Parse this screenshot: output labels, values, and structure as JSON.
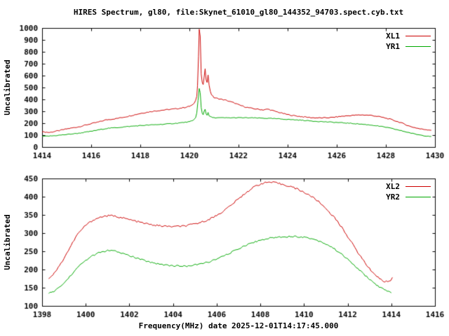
{
  "page": {
    "title": "HIRES Spectrum, gl80, file:Skynet_61010_gl80_144352_94703.spect.cyb.txt",
    "background": "#ffffff",
    "text_color": "#000000"
  },
  "chart_data": [
    {
      "type": "line",
      "name": "top-spectrum",
      "ylabel": "Uncalibrated",
      "xlim": [
        1414,
        1430
      ],
      "ylim": [
        0,
        1000
      ],
      "xticks": [
        1414,
        1416,
        1418,
        1420,
        1422,
        1424,
        1426,
        1428,
        1430
      ],
      "yticks": [
        0,
        100,
        200,
        300,
        400,
        500,
        600,
        700,
        800,
        900,
        1000
      ],
      "grid": false,
      "legend_position": "top-right",
      "series": [
        {
          "name": "XL1",
          "color": "#cc0000",
          "noise": 4,
          "points": [
            [
              1414.0,
              128
            ],
            [
              1414.3,
              122
            ],
            [
              1414.7,
              138
            ],
            [
              1415.0,
              152
            ],
            [
              1415.5,
              170
            ],
            [
              1416.0,
              196
            ],
            [
              1416.3,
              210
            ],
            [
              1416.6,
              228
            ],
            [
              1417.0,
              238
            ],
            [
              1417.5,
              258
            ],
            [
              1418.0,
              282
            ],
            [
              1418.5,
              300
            ],
            [
              1419.0,
              312
            ],
            [
              1419.5,
              322
            ],
            [
              1419.8,
              332
            ],
            [
              1420.0,
              342
            ],
            [
              1420.15,
              355
            ],
            [
              1420.25,
              390
            ],
            [
              1420.3,
              430
            ],
            [
              1420.33,
              520
            ],
            [
              1420.37,
              760
            ],
            [
              1420.4,
              990
            ],
            [
              1420.44,
              930
            ],
            [
              1420.48,
              610
            ],
            [
              1420.52,
              545
            ],
            [
              1420.56,
              520
            ],
            [
              1420.6,
              590
            ],
            [
              1420.64,
              655
            ],
            [
              1420.68,
              560
            ],
            [
              1420.72,
              545
            ],
            [
              1420.76,
              610
            ],
            [
              1420.8,
              520
            ],
            [
              1420.85,
              470
            ],
            [
              1420.9,
              440
            ],
            [
              1421.0,
              415
            ],
            [
              1421.2,
              405
            ],
            [
              1421.5,
              392
            ],
            [
              1421.8,
              372
            ],
            [
              1422.0,
              355
            ],
            [
              1422.3,
              335
            ],
            [
              1422.6,
              322
            ],
            [
              1423.0,
              312
            ],
            [
              1423.2,
              318
            ],
            [
              1423.4,
              305
            ],
            [
              1423.7,
              288
            ],
            [
              1424.0,
              272
            ],
            [
              1424.3,
              262
            ],
            [
              1424.7,
              252
            ],
            [
              1425.0,
              246
            ],
            [
              1425.4,
              244
            ],
            [
              1425.8,
              248
            ],
            [
              1426.2,
              258
            ],
            [
              1426.6,
              265
            ],
            [
              1427.0,
              270
            ],
            [
              1427.4,
              266
            ],
            [
              1427.8,
              252
            ],
            [
              1428.2,
              232
            ],
            [
              1428.6,
              205
            ],
            [
              1429.0,
              172
            ],
            [
              1429.4,
              152
            ],
            [
              1429.7,
              145
            ],
            [
              1429.85,
              142
            ]
          ]
        },
        {
          "name": "YR1",
          "color": "#00a800",
          "noise": 3,
          "points": [
            [
              1414.0,
              88
            ],
            [
              1414.5,
              95
            ],
            [
              1415.0,
              105
            ],
            [
              1415.5,
              116
            ],
            [
              1416.0,
              132
            ],
            [
              1416.4,
              148
            ],
            [
              1416.7,
              158
            ],
            [
              1417.0,
              162
            ],
            [
              1417.5,
              172
            ],
            [
              1418.0,
              180
            ],
            [
              1418.5,
              186
            ],
            [
              1419.0,
              192
            ],
            [
              1419.5,
              200
            ],
            [
              1420.0,
              212
            ],
            [
              1420.15,
              222
            ],
            [
              1420.25,
              248
            ],
            [
              1420.3,
              285
            ],
            [
              1420.35,
              390
            ],
            [
              1420.4,
              490
            ],
            [
              1420.44,
              455
            ],
            [
              1420.48,
              330
            ],
            [
              1420.52,
              285
            ],
            [
              1420.56,
              272
            ],
            [
              1420.6,
              300
            ],
            [
              1420.64,
              318
            ],
            [
              1420.68,
              280
            ],
            [
              1420.72,
              268
            ],
            [
              1420.76,
              288
            ],
            [
              1420.8,
              262
            ],
            [
              1420.9,
              250
            ],
            [
              1421.0,
              246
            ],
            [
              1421.5,
              245
            ],
            [
              1422.0,
              246
            ],
            [
              1422.5,
              245
            ],
            [
              1423.0,
              242
            ],
            [
              1423.5,
              238
            ],
            [
              1424.0,
              232
            ],
            [
              1424.5,
              226
            ],
            [
              1425.0,
              218
            ],
            [
              1425.5,
              212
            ],
            [
              1426.0,
              206
            ],
            [
              1426.5,
              200
            ],
            [
              1427.0,
              192
            ],
            [
              1427.5,
              182
            ],
            [
              1428.0,
              166
            ],
            [
              1428.4,
              148
            ],
            [
              1428.8,
              128
            ],
            [
              1429.2,
              108
            ],
            [
              1429.6,
              94
            ],
            [
              1429.85,
              90
            ]
          ]
        }
      ]
    },
    {
      "type": "line",
      "name": "bottom-spectrum",
      "xlabel": "Frequency(MHz) date 2025-12-01T14:17:45.000",
      "ylabel": "Uncalibrated",
      "xlim": [
        1398,
        1416
      ],
      "ylim": [
        100,
        450
      ],
      "xticks": [
        1398,
        1400,
        1402,
        1404,
        1406,
        1408,
        1410,
        1412,
        1414,
        1416
      ],
      "yticks": [
        100,
        150,
        200,
        250,
        300,
        350,
        400,
        450
      ],
      "grid": false,
      "legend_position": "top-right",
      "series": [
        {
          "name": "XL2",
          "color": "#cc0000",
          "noise": 2.5,
          "points": [
            [
              1398.3,
              176
            ],
            [
              1398.5,
              186
            ],
            [
              1398.8,
              210
            ],
            [
              1399.2,
              252
            ],
            [
              1399.6,
              295
            ],
            [
              1400.0,
              322
            ],
            [
              1400.4,
              338
            ],
            [
              1400.8,
              346
            ],
            [
              1401.1,
              348
            ],
            [
              1401.4,
              346
            ],
            [
              1401.8,
              340
            ],
            [
              1402.2,
              334
            ],
            [
              1402.6,
              328
            ],
            [
              1403.0,
              323
            ],
            [
              1403.4,
              320
            ],
            [
              1403.8,
              318
            ],
            [
              1404.2,
              318
            ],
            [
              1404.6,
              320
            ],
            [
              1405.0,
              325
            ],
            [
              1405.4,
              332
            ],
            [
              1405.8,
              342
            ],
            [
              1406.2,
              356
            ],
            [
              1406.6,
              374
            ],
            [
              1407.0,
              394
            ],
            [
              1407.4,
              414
            ],
            [
              1407.8,
              430
            ],
            [
              1408.1,
              437
            ],
            [
              1408.4,
              440
            ],
            [
              1408.7,
              438
            ],
            [
              1409.0,
              434
            ],
            [
              1409.4,
              428
            ],
            [
              1409.8,
              418
            ],
            [
              1410.2,
              406
            ],
            [
              1410.6,
              390
            ],
            [
              1411.0,
              368
            ],
            [
              1411.4,
              342
            ],
            [
              1411.8,
              310
            ],
            [
              1412.2,
              272
            ],
            [
              1412.6,
              235
            ],
            [
              1413.0,
              202
            ],
            [
              1413.4,
              178
            ],
            [
              1413.7,
              166
            ],
            [
              1413.9,
              168
            ],
            [
              1414.05,
              176
            ]
          ]
        },
        {
          "name": "YR2",
          "color": "#00a800",
          "noise": 2,
          "points": [
            [
              1398.3,
              134
            ],
            [
              1398.6,
              142
            ],
            [
              1399.0,
              162
            ],
            [
              1399.4,
              190
            ],
            [
              1399.8,
              216
            ],
            [
              1400.2,
              234
            ],
            [
              1400.6,
              246
            ],
            [
              1401.0,
              252
            ],
            [
              1401.3,
              251
            ],
            [
              1401.7,
              244
            ],
            [
              1402.1,
              236
            ],
            [
              1402.5,
              228
            ],
            [
              1402.9,
              221
            ],
            [
              1403.3,
              216
            ],
            [
              1403.7,
              212
            ],
            [
              1404.1,
              210
            ],
            [
              1404.5,
              209
            ],
            [
              1404.9,
              211
            ],
            [
              1405.3,
              216
            ],
            [
              1405.7,
              222
            ],
            [
              1406.1,
              231
            ],
            [
              1406.5,
              242
            ],
            [
              1406.9,
              254
            ],
            [
              1407.3,
              266
            ],
            [
              1407.7,
              275
            ],
            [
              1408.1,
              282
            ],
            [
              1408.5,
              287
            ],
            [
              1409.0,
              290
            ],
            [
              1409.5,
              291
            ],
            [
              1410.0,
              289
            ],
            [
              1410.4,
              284
            ],
            [
              1410.8,
              276
            ],
            [
              1411.2,
              264
            ],
            [
              1411.6,
              248
            ],
            [
              1412.0,
              228
            ],
            [
              1412.4,
              206
            ],
            [
              1412.8,
              184
            ],
            [
              1413.2,
              163
            ],
            [
              1413.5,
              150
            ],
            [
              1413.8,
              141
            ],
            [
              1414.0,
              136
            ]
          ]
        }
      ]
    }
  ]
}
